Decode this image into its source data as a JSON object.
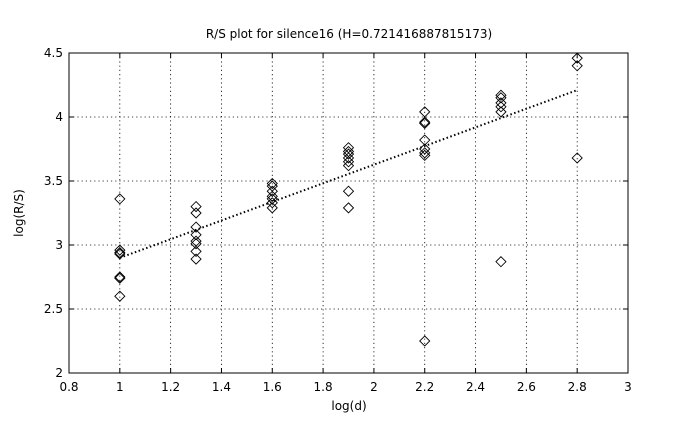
{
  "chart_data": {
    "type": "scatter",
    "title": "R/S plot for silence16 (H=0.721416887815173)",
    "xlabel": "log(d)",
    "ylabel": "log(R/S)",
    "xlim": [
      0.8,
      3
    ],
    "ylim": [
      2,
      4.5
    ],
    "xticks": [
      "0.8",
      "1",
      "1.2",
      "1.4",
      "1.6",
      "1.8",
      "2",
      "2.2",
      "2.4",
      "2.6",
      "2.8",
      "3"
    ],
    "yticks": [
      "2",
      "2.5",
      "3",
      "3.5",
      "4",
      "4.5"
    ],
    "grid": true,
    "marker": "diamond",
    "points": [
      [
        1.0,
        3.36
      ],
      [
        1.0,
        2.96
      ],
      [
        1.0,
        2.94
      ],
      [
        1.0,
        2.93
      ],
      [
        1.0,
        2.75
      ],
      [
        1.0,
        2.74
      ],
      [
        1.0,
        2.6
      ],
      [
        1.3,
        3.3
      ],
      [
        1.3,
        3.25
      ],
      [
        1.3,
        3.14
      ],
      [
        1.3,
        3.08
      ],
      [
        1.3,
        3.03
      ],
      [
        1.3,
        3.01
      ],
      [
        1.3,
        2.95
      ],
      [
        1.3,
        2.89
      ],
      [
        1.6,
        3.48
      ],
      [
        1.6,
        3.46
      ],
      [
        1.6,
        3.42
      ],
      [
        1.6,
        3.38
      ],
      [
        1.6,
        3.36
      ],
      [
        1.6,
        3.33
      ],
      [
        1.6,
        3.29
      ],
      [
        1.9,
        3.76
      ],
      [
        1.9,
        3.73
      ],
      [
        1.9,
        3.71
      ],
      [
        1.9,
        3.68
      ],
      [
        1.9,
        3.65
      ],
      [
        1.9,
        3.62
      ],
      [
        1.9,
        3.42
      ],
      [
        1.9,
        3.29
      ],
      [
        2.2,
        4.04
      ],
      [
        2.2,
        3.96
      ],
      [
        2.2,
        3.95
      ],
      [
        2.2,
        3.82
      ],
      [
        2.2,
        3.75
      ],
      [
        2.2,
        3.72
      ],
      [
        2.2,
        3.7
      ],
      [
        2.2,
        2.25
      ],
      [
        2.5,
        4.17
      ],
      [
        2.5,
        4.15
      ],
      [
        2.5,
        4.11
      ],
      [
        2.5,
        4.08
      ],
      [
        2.5,
        4.04
      ],
      [
        2.5,
        2.87
      ],
      [
        2.8,
        4.46
      ],
      [
        2.8,
        4.4
      ],
      [
        2.8,
        3.68
      ]
    ],
    "fit_line": {
      "x": [
        1.0,
        2.8
      ],
      "y": [
        2.9,
        4.21
      ]
    }
  }
}
